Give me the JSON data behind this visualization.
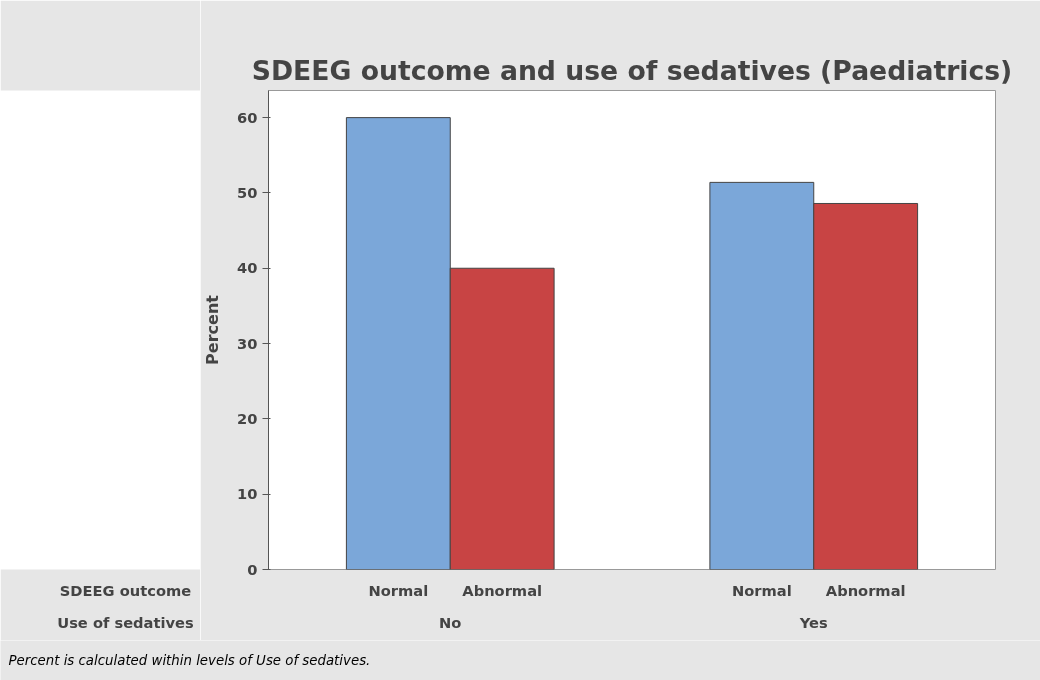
{
  "chart_data": {
    "type": "bar",
    "title": "SDEEG outcome and use of sedatives (Paediatrics)",
    "categories": [
      "No",
      "Yes"
    ],
    "xlabel": "Use of sedatives",
    "legend_title": "SDEEG outcome",
    "ylabel": "Percent",
    "series": [
      {
        "name": "Normal",
        "color": "#7ba7d9",
        "values": [
          60,
          51.4
        ]
      },
      {
        "name": "Abnormal",
        "color": "#c84444",
        "values": [
          40,
          48.6
        ]
      }
    ],
    "ylim": [
      0,
      63.6
    ],
    "yticks": [
      0,
      10,
      20,
      30,
      40,
      50,
      60
    ],
    "grid": false,
    "legend": false,
    "annotations": [
      "Percent is calculated within levels of Use of sedatives."
    ]
  }
}
